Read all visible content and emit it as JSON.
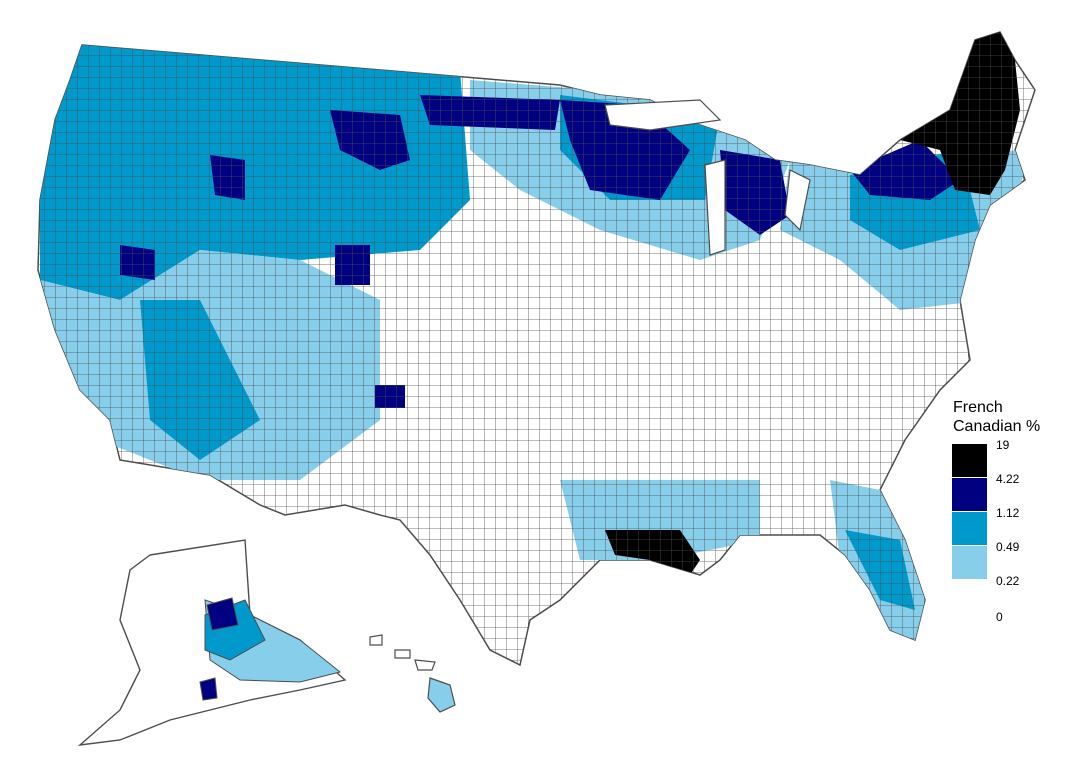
{
  "legend": {
    "title_line1": "French",
    "title_line2": "Canadian %",
    "breaks": [
      "19",
      "4.22",
      "1.12",
      "0.49",
      "0.22",
      "0"
    ],
    "colors": [
      "#000000",
      "#000080",
      "#0099CC",
      "#87CEEB",
      "#FFFFFF"
    ]
  },
  "map": {
    "region": "United States counties (contiguous US, Alaska, Hawaii)",
    "border_color": "#4D4D4D",
    "high_areas": [
      "Maine / northern New England",
      "South Louisiana",
      "Michigan / Upper Midwest",
      "Northern Montana / Idaho / Washington"
    ]
  }
}
